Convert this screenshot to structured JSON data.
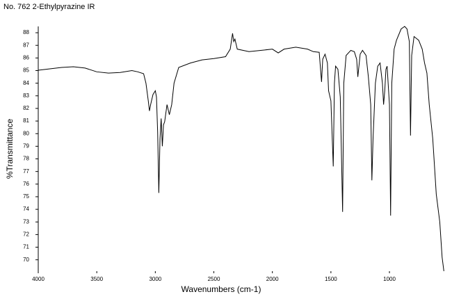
{
  "chart_data": {
    "type": "line",
    "title": "No. 762 2-Ethylpyrazine IR",
    "xlabel": "Wavenumbers (cm-1)",
    "ylabel": "%Transmittance",
    "color": "#000000",
    "xlim": [
      4000,
      525
    ],
    "ylim": [
      69.1,
      88.5
    ],
    "xticks": [
      4000,
      3500,
      3000,
      2500,
      2000,
      1500,
      1000
    ],
    "yticks": [
      70,
      71,
      72,
      73,
      74,
      75,
      76,
      77,
      78,
      79,
      80,
      81,
      82,
      83,
      84,
      85,
      86,
      87,
      88
    ],
    "x": [
      4000,
      3800,
      3700,
      3600,
      3500,
      3400,
      3300,
      3200,
      3150,
      3100,
      3080,
      3060,
      3050,
      3040,
      3020,
      3000,
      2990,
      2980,
      2970,
      2960,
      2950,
      2940,
      2930,
      2920,
      2900,
      2880,
      2860,
      2840,
      2800,
      2700,
      2600,
      2500,
      2400,
      2360,
      2340,
      2330,
      2320,
      2300,
      2200,
      2100,
      2000,
      1950,
      1900,
      1800,
      1700,
      1650,
      1600,
      1580,
      1570,
      1550,
      1530,
      1520,
      1500,
      1480,
      1470,
      1460,
      1440,
      1420,
      1400,
      1390,
      1370,
      1330,
      1300,
      1280,
      1270,
      1250,
      1230,
      1200,
      1180,
      1160,
      1150,
      1140,
      1120,
      1100,
      1080,
      1060,
      1050,
      1040,
      1030,
      1020,
      1000,
      990,
      980,
      960,
      940,
      900,
      870,
      850,
      830,
      820,
      810,
      790,
      750,
      720,
      700,
      680,
      660,
      630,
      600,
      570,
      550,
      535
    ],
    "values": [
      85.03,
      85.25,
      85.3,
      85.2,
      84.9,
      84.8,
      84.85,
      85.0,
      84.9,
      84.75,
      84.0,
      82.6,
      81.8,
      82.3,
      83.1,
      83.4,
      82.9,
      80.1,
      75.3,
      79.6,
      81.2,
      79.0,
      80.7,
      80.95,
      82.3,
      81.5,
      82.3,
      84.0,
      85.25,
      85.6,
      85.85,
      85.95,
      86.1,
      86.7,
      87.95,
      87.3,
      87.5,
      86.7,
      86.5,
      86.6,
      86.7,
      86.4,
      86.7,
      86.85,
      86.7,
      86.5,
      86.45,
      84.1,
      85.9,
      86.3,
      85.6,
      83.4,
      82.6,
      77.4,
      84.0,
      85.35,
      85.1,
      82.9,
      73.8,
      84.0,
      86.2,
      86.6,
      86.5,
      85.9,
      84.5,
      86.3,
      86.6,
      86.2,
      84.5,
      82.3,
      76.3,
      79.6,
      84.0,
      85.35,
      85.6,
      84.0,
      82.3,
      83.4,
      85.1,
      85.35,
      82.3,
      73.5,
      84.0,
      86.7,
      87.4,
      88.3,
      88.5,
      88.3,
      87.3,
      79.85,
      86.2,
      87.7,
      87.4,
      86.7,
      85.6,
      84.8,
      82.3,
      79.6,
      75.2,
      73.0,
      70.2,
      69.1
    ]
  }
}
